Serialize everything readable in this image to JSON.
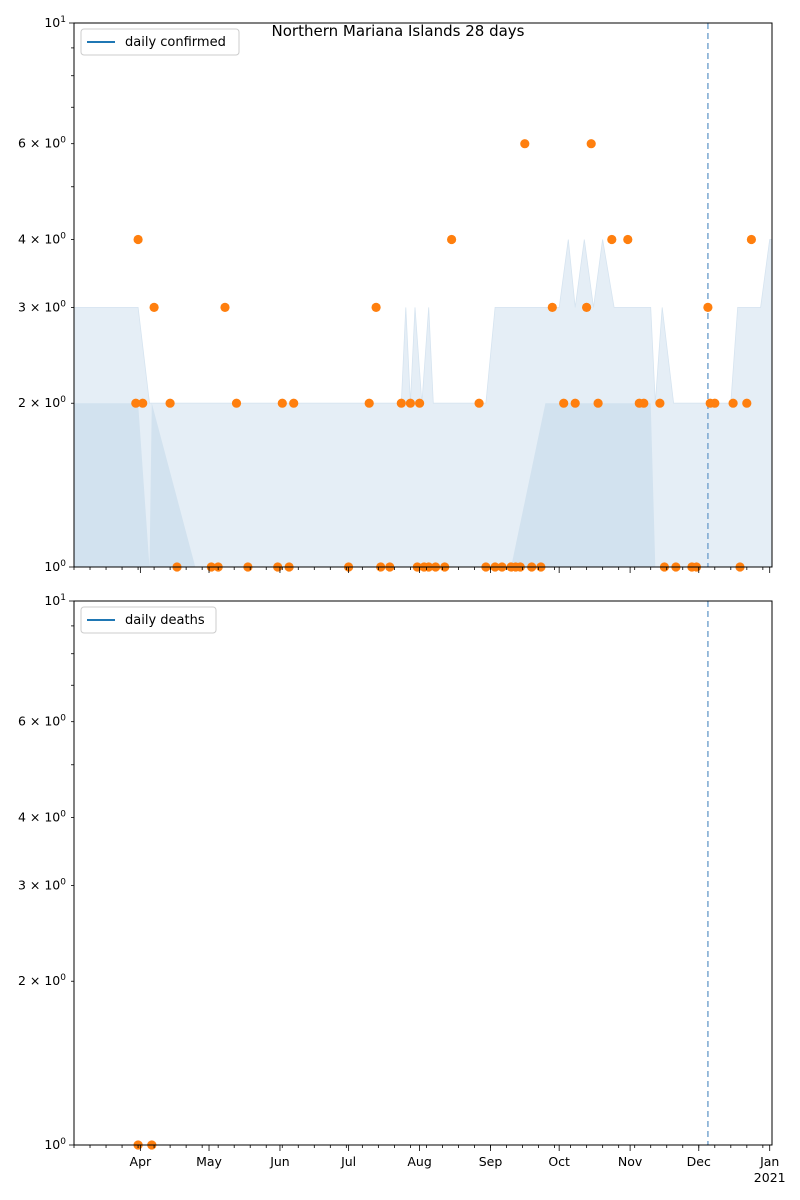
{
  "figure": {
    "title": "Northern Mariana Islands 28 days"
  },
  "x_axis": {
    "month_labels": [
      "Apr",
      "May",
      "Jun",
      "Jul",
      "Aug",
      "Sep",
      "Oct",
      "Nov",
      "Dec",
      "Jan"
    ],
    "year_label": "2021"
  },
  "y_axis": {
    "scale": "log",
    "major_labels": [
      {
        "value": 1,
        "text": "10^0"
      },
      {
        "value": 10,
        "text": "10^1"
      }
    ],
    "minor_labels": [
      {
        "value": 2,
        "text": "2 × 10^0"
      },
      {
        "value": 3,
        "text": "3 × 10^0"
      },
      {
        "value": 4,
        "text": "4 × 10^0"
      },
      {
        "value": 6,
        "text": "6 × 10^0"
      }
    ]
  },
  "colors": {
    "line": "#1f77b4",
    "points": "#ff7f0e",
    "band_outer": "#e5eef6",
    "band_inner": "#d2e2ef",
    "marker_line": "#7aa7d0"
  },
  "chart_data": [
    {
      "type": "scatter",
      "panel": "top",
      "title": "Northern Mariana Islands 28 days",
      "legend": "daily confirmed",
      "legend_position": "top-left",
      "y_scale": "log",
      "ylim": [
        1,
        10
      ],
      "xlim": [
        "2020-03-03",
        "2021-01-02"
      ],
      "vline": "2020-12-05",
      "band": {
        "dates": [
          "2020-03-03",
          "2020-03-31",
          "2020-04-05",
          "2020-04-06",
          "2020-04-25",
          "2020-05-15",
          "2020-06-04",
          "2020-06-24",
          "2020-07-04",
          "2020-07-15",
          "2020-07-20",
          "2020-07-24",
          "2020-07-26",
          "2020-07-28",
          "2020-07-30",
          "2020-08-02",
          "2020-08-05",
          "2020-08-07",
          "2020-08-10",
          "2020-08-15",
          "2020-08-25",
          "2020-08-30",
          "2020-09-03",
          "2020-09-05",
          "2020-09-10",
          "2020-09-25",
          "2020-10-01",
          "2020-10-05",
          "2020-10-08",
          "2020-10-12",
          "2020-10-16",
          "2020-10-20",
          "2020-10-25",
          "2020-11-01",
          "2020-11-10",
          "2020-11-12",
          "2020-11-15",
          "2020-11-20",
          "2020-11-26",
          "2020-12-05",
          "2020-12-10",
          "2020-12-15",
          "2020-12-18",
          "2020-12-23",
          "2020-12-28",
          "2021-01-01",
          "2021-01-02"
        ],
        "lower": [
          1,
          1,
          1,
          1,
          1,
          1,
          1,
          1,
          1,
          1,
          1,
          1,
          1,
          1,
          1,
          1,
          1,
          1,
          1,
          1,
          1,
          1,
          1,
          1,
          1,
          1,
          1,
          1,
          1,
          1,
          1,
          1,
          1,
          1,
          1,
          1,
          1,
          1,
          1,
          1,
          1,
          1,
          1,
          1,
          1,
          1,
          1
        ],
        "upper": [
          3,
          3,
          2,
          2,
          2,
          2,
          2,
          2,
          2,
          2,
          2,
          2,
          3,
          2,
          3,
          2,
          3,
          2,
          2,
          2,
          2,
          2,
          3,
          3,
          3,
          3,
          3,
          4,
          3,
          4,
          3,
          4,
          3,
          3,
          3,
          2,
          3,
          2,
          2,
          2,
          2,
          2,
          3,
          3,
          3,
          4,
          4
        ],
        "inner_lower": [
          1,
          1,
          1,
          1,
          1,
          1,
          1,
          1,
          1,
          1,
          1,
          1,
          1,
          1,
          1,
          1,
          1,
          1,
          1,
          1,
          1,
          1,
          1,
          1,
          1,
          1,
          1,
          1,
          1,
          1,
          1,
          1,
          1,
          1,
          1,
          1,
          1,
          1,
          1,
          1,
          1,
          1,
          1,
          1,
          1,
          1,
          1
        ],
        "inner_upper": [
          2,
          2,
          1,
          2,
          1,
          1,
          1,
          1,
          1,
          1,
          1,
          1,
          1,
          1,
          1,
          1,
          1,
          1,
          1,
          1,
          1,
          1,
          1,
          1,
          1,
          2,
          2,
          2,
          2,
          2,
          2,
          2,
          2,
          2,
          2,
          1,
          1,
          1,
          1,
          1,
          1,
          1,
          1,
          1,
          1,
          1,
          1
        ]
      },
      "points": [
        {
          "x": "2020-03-30",
          "y": 2
        },
        {
          "x": "2020-03-31",
          "y": 4
        },
        {
          "x": "2020-04-02",
          "y": 2
        },
        {
          "x": "2020-04-07",
          "y": 3
        },
        {
          "x": "2020-04-14",
          "y": 2
        },
        {
          "x": "2020-04-17",
          "y": 1
        },
        {
          "x": "2020-05-02",
          "y": 1
        },
        {
          "x": "2020-05-05",
          "y": 1
        },
        {
          "x": "2020-05-08",
          "y": 3
        },
        {
          "x": "2020-05-13",
          "y": 2
        },
        {
          "x": "2020-05-18",
          "y": 1
        },
        {
          "x": "2020-05-31",
          "y": 1
        },
        {
          "x": "2020-06-02",
          "y": 2
        },
        {
          "x": "2020-06-05",
          "y": 1
        },
        {
          "x": "2020-06-07",
          "y": 2
        },
        {
          "x": "2020-07-01",
          "y": 1
        },
        {
          "x": "2020-07-10",
          "y": 2
        },
        {
          "x": "2020-07-13",
          "y": 3
        },
        {
          "x": "2020-07-15",
          "y": 1
        },
        {
          "x": "2020-07-19",
          "y": 1
        },
        {
          "x": "2020-07-24",
          "y": 2
        },
        {
          "x": "2020-07-28",
          "y": 2
        },
        {
          "x": "2020-07-31",
          "y": 1
        },
        {
          "x": "2020-08-01",
          "y": 2
        },
        {
          "x": "2020-08-03",
          "y": 1
        },
        {
          "x": "2020-08-05",
          "y": 1
        },
        {
          "x": "2020-08-08",
          "y": 1
        },
        {
          "x": "2020-08-12",
          "y": 1
        },
        {
          "x": "2020-08-15",
          "y": 4
        },
        {
          "x": "2020-08-27",
          "y": 2
        },
        {
          "x": "2020-08-30",
          "y": 1
        },
        {
          "x": "2020-09-03",
          "y": 1
        },
        {
          "x": "2020-09-06",
          "y": 1
        },
        {
          "x": "2020-09-10",
          "y": 1
        },
        {
          "x": "2020-09-12",
          "y": 1
        },
        {
          "x": "2020-09-14",
          "y": 1
        },
        {
          "x": "2020-09-16",
          "y": 6
        },
        {
          "x": "2020-09-19",
          "y": 1
        },
        {
          "x": "2020-09-23",
          "y": 1
        },
        {
          "x": "2020-09-28",
          "y": 3
        },
        {
          "x": "2020-10-03",
          "y": 2
        },
        {
          "x": "2020-10-08",
          "y": 2
        },
        {
          "x": "2020-10-13",
          "y": 3
        },
        {
          "x": "2020-10-15",
          "y": 6
        },
        {
          "x": "2020-10-18",
          "y": 2
        },
        {
          "x": "2020-10-24",
          "y": 4
        },
        {
          "x": "2020-10-31",
          "y": 4
        },
        {
          "x": "2020-11-05",
          "y": 2
        },
        {
          "x": "2020-11-07",
          "y": 2
        },
        {
          "x": "2020-11-14",
          "y": 2
        },
        {
          "x": "2020-11-16",
          "y": 1
        },
        {
          "x": "2020-11-21",
          "y": 1
        },
        {
          "x": "2020-11-28",
          "y": 1
        },
        {
          "x": "2020-11-30",
          "y": 1
        },
        {
          "x": "2020-12-05",
          "y": 3
        },
        {
          "x": "2020-12-06",
          "y": 2
        },
        {
          "x": "2020-12-08",
          "y": 2
        },
        {
          "x": "2020-12-16",
          "y": 2
        },
        {
          "x": "2020-12-19",
          "y": 1
        },
        {
          "x": "2020-12-22",
          "y": 2
        },
        {
          "x": "2020-12-24",
          "y": 4
        }
      ]
    },
    {
      "type": "scatter",
      "panel": "bottom",
      "legend": "daily deaths",
      "legend_position": "top-left",
      "y_scale": "log",
      "ylim": [
        1,
        10
      ],
      "xlim": [
        "2020-03-03",
        "2021-01-02"
      ],
      "vline": "2020-12-05",
      "points": [
        {
          "x": "2020-03-31",
          "y": 1
        },
        {
          "x": "2020-04-06",
          "y": 1
        }
      ]
    }
  ]
}
